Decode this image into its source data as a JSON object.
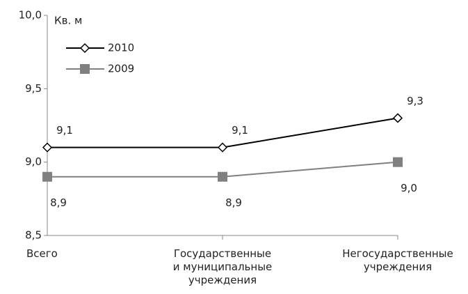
{
  "chart_data": {
    "type": "line",
    "y_label": "Кв. м",
    "categories": [
      "Всего",
      "Государственные\nи муниципальные\nучреждения",
      "Негосударственные\nучреждения"
    ],
    "series": [
      {
        "name": "2010",
        "color": "#000000",
        "marker": "diamond",
        "values": [
          9.1,
          9.1,
          9.3
        ],
        "value_labels": [
          "9,1",
          "9,1",
          "9,3"
        ]
      },
      {
        "name": "2009",
        "color": "#808080",
        "marker": "square",
        "values": [
          8.9,
          8.9,
          9.0
        ],
        "value_labels": [
          "8,9",
          "8,9",
          "9,0"
        ]
      }
    ],
    "ylim": [
      8.5,
      10.0
    ],
    "yticks": [
      {
        "value": 8.5,
        "label": "8,5"
      },
      {
        "value": 9.0,
        "label": "9,0"
      },
      {
        "value": 9.5,
        "label": "9,5"
      },
      {
        "value": 10.0,
        "label": "10,0"
      }
    ],
    "grid": false,
    "legend": "top-left"
  }
}
